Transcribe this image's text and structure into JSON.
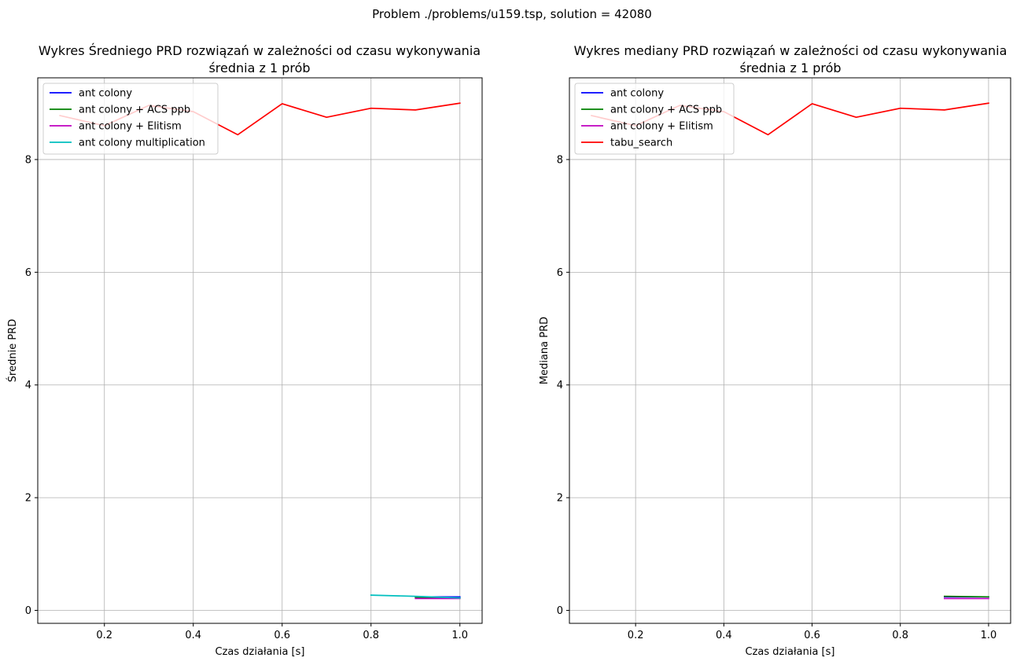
{
  "suptitle": "Problem ./problems/u159.tsp, solution = 42080",
  "chart_data": [
    {
      "type": "line",
      "title_line1": "Wykres Średniego PRD rozwiązań w zależności od czasu wykonywania",
      "title_line2": "średnia z 1 prób",
      "xlabel": "Czas działania [s]",
      "ylabel": "Średnie PRD",
      "xlim": [
        0.05,
        1.05
      ],
      "ylim": [
        -0.23,
        9.45
      ],
      "xticks": [
        0.2,
        0.4,
        0.6,
        0.8,
        1.0
      ],
      "xtick_labels": [
        "0.2",
        "0.4",
        "0.6",
        "0.8",
        "1.0"
      ],
      "yticks": [
        0,
        2,
        4,
        6,
        8
      ],
      "ytick_labels": [
        "0",
        "2",
        "4",
        "6",
        "8"
      ],
      "grid": true,
      "legend_position": "upper-left",
      "series": [
        {
          "name": "ant colony",
          "color": "#0000ff",
          "x": [
            0.9,
            1.0
          ],
          "y": [
            0.24,
            0.24
          ],
          "in_legend": true
        },
        {
          "name": "ant colony + ACS ppb",
          "color": "#008000",
          "x": [
            0.9,
            1.0
          ],
          "y": [
            0.23,
            0.22
          ],
          "in_legend": true
        },
        {
          "name": "ant colony + Elitism",
          "color": "#bf00bf",
          "x": [
            0.9,
            1.0
          ],
          "y": [
            0.21,
            0.21
          ],
          "in_legend": true
        },
        {
          "name": "ant colony multiplication",
          "color": "#00bfbf",
          "x": [
            0.8,
            0.9,
            1.0
          ],
          "y": [
            0.27,
            0.25,
            0.22
          ],
          "in_legend": true
        },
        {
          "name": "tabu_search",
          "color": "#ff0000",
          "x": [
            0.1,
            0.2,
            0.3,
            0.4,
            0.5,
            0.6,
            0.7,
            0.8,
            0.9,
            1.0
          ],
          "y": [
            8.78,
            8.6,
            8.96,
            8.85,
            8.44,
            8.99,
            8.75,
            8.91,
            8.88,
            9.0
          ],
          "in_legend": false
        }
      ]
    },
    {
      "type": "line",
      "title_line1": "Wykres mediany PRD rozwiązań w zależności od czasu wykonywania",
      "title_line2": "średnia z 1 prób",
      "xlabel": "Czas działania [s]",
      "ylabel": "Mediana PRD",
      "xlim": [
        0.05,
        1.05
      ],
      "ylim": [
        -0.23,
        9.45
      ],
      "xticks": [
        0.2,
        0.4,
        0.6,
        0.8,
        1.0
      ],
      "xtick_labels": [
        "0.2",
        "0.4",
        "0.6",
        "0.8",
        "1.0"
      ],
      "yticks": [
        0,
        2,
        4,
        6,
        8
      ],
      "ytick_labels": [
        "0",
        "2",
        "4",
        "6",
        "8"
      ],
      "grid": true,
      "legend_position": "upper-left",
      "series": [
        {
          "name": "ant colony",
          "color": "#0000ff",
          "x": [
            0.9,
            1.0
          ],
          "y": [
            0.24,
            0.24
          ],
          "in_legend": true
        },
        {
          "name": "ant colony + ACS ppb",
          "color": "#008000",
          "x": [
            0.9,
            1.0
          ],
          "y": [
            0.25,
            0.24
          ],
          "in_legend": true
        },
        {
          "name": "ant colony + Elitism",
          "color": "#bf00bf",
          "x": [
            0.9,
            1.0
          ],
          "y": [
            0.21,
            0.21
          ],
          "in_legend": true
        },
        {
          "name": "tabu_search",
          "color": "#ff0000",
          "x": [
            0.1,
            0.2,
            0.3,
            0.4,
            0.5,
            0.6,
            0.7,
            0.8,
            0.9,
            1.0
          ],
          "y": [
            8.78,
            8.6,
            8.96,
            8.85,
            8.44,
            8.99,
            8.75,
            8.91,
            8.88,
            9.0
          ],
          "in_legend": true
        }
      ]
    }
  ]
}
